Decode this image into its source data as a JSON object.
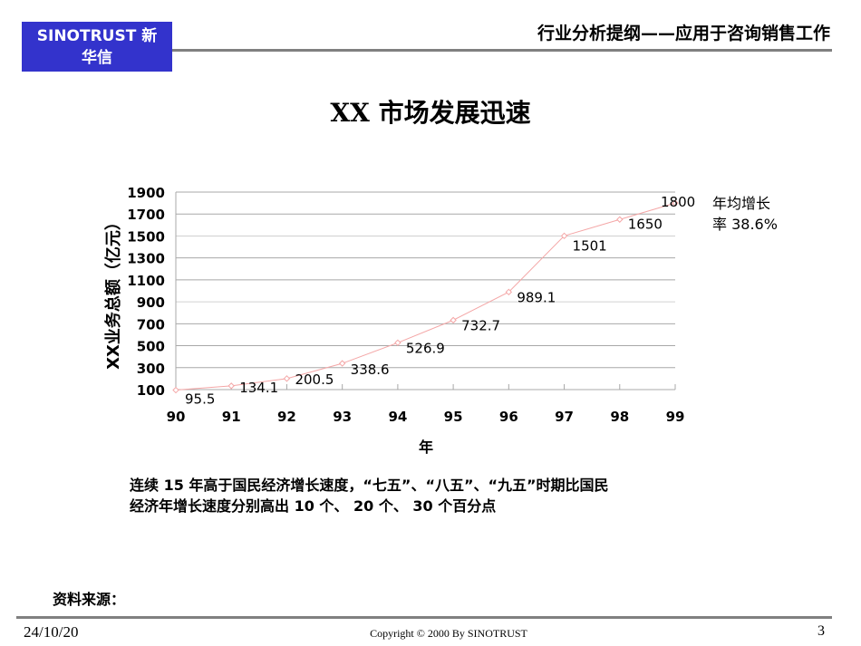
{
  "header": {
    "logo_line1": "SINOTRUST  新",
    "logo_line2": "华信",
    "title": "行业分析提纲——应用于咨询销售工作",
    "brand_color": "#3333cc"
  },
  "slide": {
    "title": "XX 市场发展迅速",
    "annotation_line1": "年均增长",
    "annotation_line2": "率 38.6%",
    "note_line1": "连续 15 年高于国民经济增长速度，“七五”、“八五”、“九五”时期比国民",
    "note_line2": "经济年增长速度分别高出 10 个、 20 个、 30 个百分点",
    "source_label": "资料来源："
  },
  "footer": {
    "date": "24/10/20",
    "copyright": "Copyright © 2000 By SINOTRUST",
    "page": "3"
  },
  "chart_data": {
    "type": "line",
    "title": "XX 市场发展迅速",
    "xlabel": "年",
    "ylabel": "XX业务总额（亿元）",
    "categories": [
      "90",
      "91",
      "92",
      "93",
      "94",
      "95",
      "96",
      "97",
      "98",
      "99"
    ],
    "series": [
      {
        "name": "XX业务总额",
        "values": [
          95.5,
          134.1,
          200.5,
          338.6,
          526.9,
          732.7,
          989.1,
          1501,
          1650,
          1800
        ],
        "color": "#f4a6a6"
      }
    ],
    "data_labels": [
      "95.5",
      "134.1",
      "200.5",
      "338.6",
      "526.9",
      "732.7",
      "989.1",
      "1501",
      "1650",
      "1800"
    ],
    "yticks": [
      100,
      300,
      500,
      700,
      900,
      1100,
      1300,
      1500,
      1700,
      1900
    ],
    "ylim": [
      100,
      1900
    ],
    "grid": true,
    "legend": "none",
    "annotation": "年均增长率 38.6%"
  }
}
